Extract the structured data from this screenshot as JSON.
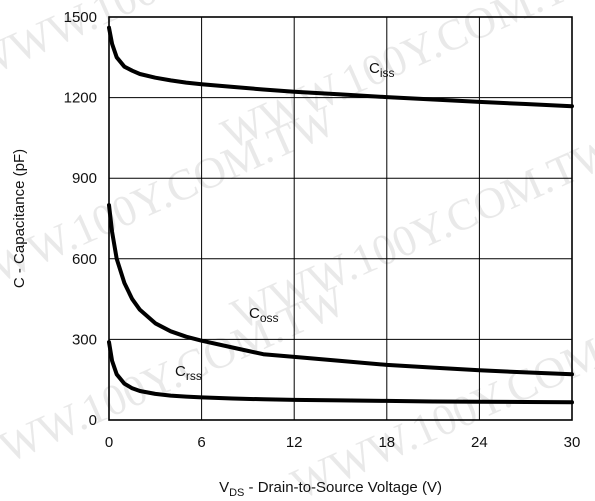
{
  "watermark_text": "WWW.100Y.COM.TW",
  "chart_data": {
    "type": "line",
    "xlabel": {
      "prefix": "V",
      "sub": "DS",
      "text": " -   Drain-to-Source Voltage (V)"
    },
    "ylabel": "C  -  Capacitance (pF)",
    "xlim": [
      0,
      30
    ],
    "ylim": [
      0,
      1500
    ],
    "xticks": [
      0,
      6,
      12,
      18,
      24,
      30
    ],
    "yticks": [
      0,
      300,
      600,
      900,
      1200,
      1500
    ],
    "grid": true,
    "series": [
      {
        "name": "C",
        "sub": "iss",
        "x": [
          0,
          0.2,
          0.5,
          1,
          1.5,
          2,
          3,
          4,
          5,
          6,
          8,
          10,
          12,
          15,
          18,
          21,
          24,
          27,
          30
        ],
        "values": [
          1460,
          1400,
          1350,
          1315,
          1300,
          1288,
          1274,
          1264,
          1256,
          1250,
          1240,
          1230,
          1222,
          1212,
          1202,
          1193,
          1184,
          1176,
          1168
        ]
      },
      {
        "name": "C",
        "sub": "oss",
        "x": [
          0,
          0.2,
          0.5,
          1,
          1.5,
          2,
          3,
          4,
          5,
          6,
          8,
          10,
          12,
          15,
          18,
          21,
          24,
          27,
          30
        ],
        "values": [
          800,
          700,
          600,
          510,
          450,
          410,
          360,
          330,
          310,
          295,
          270,
          245,
          235,
          220,
          205,
          195,
          185,
          177,
          170
        ]
      },
      {
        "name": "C",
        "sub": "rss",
        "x": [
          0,
          0.2,
          0.5,
          1,
          1.5,
          2,
          3,
          4,
          5,
          6,
          8,
          10,
          12,
          15,
          18,
          21,
          24,
          27,
          30
        ],
        "values": [
          290,
          220,
          170,
          135,
          118,
          108,
          97,
          91,
          87,
          84,
          80,
          77,
          75,
          73,
          71,
          69,
          68,
          67,
          66
        ]
      }
    ]
  }
}
